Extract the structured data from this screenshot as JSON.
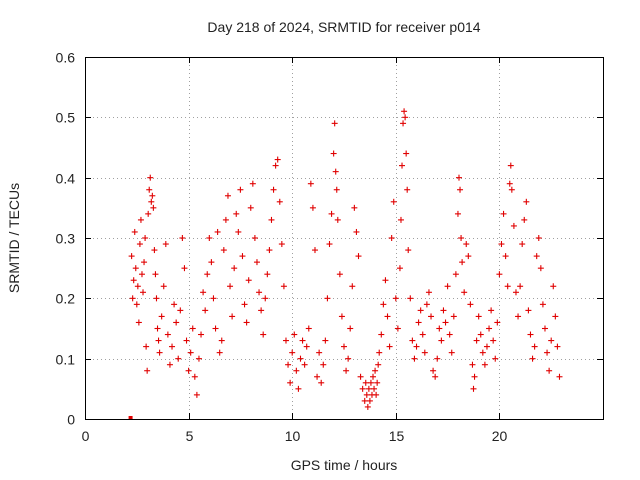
{
  "chart_data": {
    "type": "scatter",
    "title": "Day 218 of 2024, SRMTID for receiver p014",
    "xlabel": "GPS time / hours",
    "ylabel": "SRMTID / TECUs",
    "xlim": [
      0,
      25
    ],
    "ylim": [
      0,
      0.6
    ],
    "x_ticks": [
      0,
      5,
      10,
      15,
      20
    ],
    "x_tick_labels": [
      "0",
      "5",
      "10",
      "15",
      "20"
    ],
    "y_ticks": [
      0,
      0.1,
      0.2,
      0.3,
      0.4,
      0.5,
      0.6
    ],
    "y_tick_labels": [
      "0",
      "0.1",
      "0.2",
      "0.3",
      "0.4",
      "0.5",
      "0.6"
    ],
    "grid": true,
    "marker": "plus",
    "color": "#e00000",
    "outlier_marker": {
      "x": 2.2,
      "y": 0.0,
      "marker": "square"
    },
    "series": [
      {
        "name": "SRMTID",
        "points": [
          [
            2.25,
            0.27
          ],
          [
            2.3,
            0.2
          ],
          [
            2.35,
            0.23
          ],
          [
            2.4,
            0.31
          ],
          [
            2.45,
            0.25
          ],
          [
            2.5,
            0.19
          ],
          [
            2.55,
            0.22
          ],
          [
            2.6,
            0.16
          ],
          [
            2.65,
            0.29
          ],
          [
            2.7,
            0.33
          ],
          [
            2.75,
            0.24
          ],
          [
            2.8,
            0.21
          ],
          [
            2.85,
            0.26
          ],
          [
            2.9,
            0.3
          ],
          [
            2.95,
            0.12
          ],
          [
            3.0,
            0.08
          ],
          [
            3.05,
            0.34
          ],
          [
            3.1,
            0.38
          ],
          [
            3.15,
            0.4
          ],
          [
            3.2,
            0.36
          ],
          [
            3.25,
            0.37
          ],
          [
            3.3,
            0.35
          ],
          [
            3.35,
            0.28
          ],
          [
            3.4,
            0.24
          ],
          [
            3.45,
            0.2
          ],
          [
            3.5,
            0.15
          ],
          [
            3.55,
            0.13
          ],
          [
            3.6,
            0.11
          ],
          [
            3.7,
            0.17
          ],
          [
            3.8,
            0.22
          ],
          [
            3.9,
            0.29
          ],
          [
            4.0,
            0.14
          ],
          [
            4.1,
            0.09
          ],
          [
            4.2,
            0.12
          ],
          [
            4.3,
            0.19
          ],
          [
            4.4,
            0.16
          ],
          [
            4.5,
            0.1
          ],
          [
            4.6,
            0.18
          ],
          [
            4.7,
            0.3
          ],
          [
            4.8,
            0.25
          ],
          [
            4.9,
            0.13
          ],
          [
            5.0,
            0.08
          ],
          [
            5.1,
            0.11
          ],
          [
            5.2,
            0.15
          ],
          [
            5.3,
            0.07
          ],
          [
            5.4,
            0.04
          ],
          [
            5.5,
            0.1
          ],
          [
            5.6,
            0.14
          ],
          [
            5.7,
            0.21
          ],
          [
            5.8,
            0.18
          ],
          [
            5.9,
            0.24
          ],
          [
            6.0,
            0.3
          ],
          [
            6.1,
            0.26
          ],
          [
            6.2,
            0.2
          ],
          [
            6.3,
            0.15
          ],
          [
            6.4,
            0.31
          ],
          [
            6.5,
            0.11
          ],
          [
            6.6,
            0.13
          ],
          [
            6.7,
            0.28
          ],
          [
            6.8,
            0.33
          ],
          [
            6.9,
            0.37
          ],
          [
            7.0,
            0.22
          ],
          [
            7.1,
            0.17
          ],
          [
            7.2,
            0.25
          ],
          [
            7.3,
            0.34
          ],
          [
            7.4,
            0.31
          ],
          [
            7.5,
            0.38
          ],
          [
            7.6,
            0.27
          ],
          [
            7.7,
            0.19
          ],
          [
            7.8,
            0.16
          ],
          [
            7.9,
            0.23
          ],
          [
            8.0,
            0.35
          ],
          [
            8.1,
            0.39
          ],
          [
            8.2,
            0.3
          ],
          [
            8.3,
            0.26
          ],
          [
            8.4,
            0.21
          ],
          [
            8.5,
            0.18
          ],
          [
            8.6,
            0.14
          ],
          [
            8.7,
            0.2
          ],
          [
            8.8,
            0.24
          ],
          [
            8.9,
            0.28
          ],
          [
            9.0,
            0.33
          ],
          [
            9.1,
            0.38
          ],
          [
            9.2,
            0.42
          ],
          [
            9.3,
            0.43
          ],
          [
            9.4,
            0.36
          ],
          [
            9.5,
            0.29
          ],
          [
            9.6,
            0.22
          ],
          [
            9.7,
            0.13
          ],
          [
            9.8,
            0.09
          ],
          [
            9.9,
            0.06
          ],
          [
            10.0,
            0.11
          ],
          [
            10.1,
            0.14
          ],
          [
            10.2,
            0.08
          ],
          [
            10.3,
            0.05
          ],
          [
            10.4,
            0.1
          ],
          [
            10.5,
            0.13
          ],
          [
            10.6,
            0.09
          ],
          [
            10.7,
            0.12
          ],
          [
            10.8,
            0.15
          ],
          [
            10.9,
            0.39
          ],
          [
            11.0,
            0.35
          ],
          [
            11.1,
            0.28
          ],
          [
            11.2,
            0.07
          ],
          [
            11.3,
            0.11
          ],
          [
            11.4,
            0.06
          ],
          [
            11.5,
            0.09
          ],
          [
            11.6,
            0.13
          ],
          [
            11.7,
            0.2
          ],
          [
            11.8,
            0.29
          ],
          [
            11.9,
            0.34
          ],
          [
            12.0,
            0.44
          ],
          [
            12.05,
            0.49
          ],
          [
            12.1,
            0.41
          ],
          [
            12.15,
            0.38
          ],
          [
            12.2,
            0.33
          ],
          [
            12.3,
            0.24
          ],
          [
            12.4,
            0.17
          ],
          [
            12.5,
            0.12
          ],
          [
            12.6,
            0.08
          ],
          [
            12.7,
            0.1
          ],
          [
            12.8,
            0.15
          ],
          [
            12.9,
            0.22
          ],
          [
            13.0,
            0.35
          ],
          [
            13.1,
            0.31
          ],
          [
            13.2,
            0.27
          ],
          [
            13.3,
            0.07
          ],
          [
            13.4,
            0.05
          ],
          [
            13.5,
            0.03
          ],
          [
            13.55,
            0.06
          ],
          [
            13.6,
            0.04
          ],
          [
            13.65,
            0.02
          ],
          [
            13.7,
            0.05
          ],
          [
            13.75,
            0.03
          ],
          [
            13.8,
            0.06
          ],
          [
            13.85,
            0.04
          ],
          [
            13.9,
            0.07
          ],
          [
            13.95,
            0.05
          ],
          [
            14.0,
            0.08
          ],
          [
            14.05,
            0.04
          ],
          [
            14.1,
            0.06
          ],
          [
            14.15,
            0.09
          ],
          [
            14.2,
            0.11
          ],
          [
            14.3,
            0.14
          ],
          [
            14.4,
            0.19
          ],
          [
            14.5,
            0.23
          ],
          [
            14.6,
            0.17
          ],
          [
            14.7,
            0.12
          ],
          [
            14.8,
            0.3
          ],
          [
            14.9,
            0.36
          ],
          [
            15.0,
            0.2
          ],
          [
            15.1,
            0.15
          ],
          [
            15.2,
            0.25
          ],
          [
            15.25,
            0.33
          ],
          [
            15.3,
            0.42
          ],
          [
            15.35,
            0.49
          ],
          [
            15.4,
            0.51
          ],
          [
            15.45,
            0.5
          ],
          [
            15.5,
            0.44
          ],
          [
            15.55,
            0.38
          ],
          [
            15.6,
            0.28
          ],
          [
            15.7,
            0.2
          ],
          [
            15.8,
            0.13
          ],
          [
            15.9,
            0.1
          ],
          [
            16.0,
            0.12
          ],
          [
            16.1,
            0.16
          ],
          [
            16.2,
            0.18
          ],
          [
            16.3,
            0.14
          ],
          [
            16.4,
            0.11
          ],
          [
            16.5,
            0.19
          ],
          [
            16.6,
            0.21
          ],
          [
            16.7,
            0.17
          ],
          [
            16.8,
            0.08
          ],
          [
            16.9,
            0.07
          ],
          [
            17.0,
            0.1
          ],
          [
            17.1,
            0.15
          ],
          [
            17.2,
            0.13
          ],
          [
            17.3,
            0.18
          ],
          [
            17.4,
            0.16
          ],
          [
            17.5,
            0.22
          ],
          [
            17.6,
            0.14
          ],
          [
            17.7,
            0.11
          ],
          [
            17.8,
            0.17
          ],
          [
            17.9,
            0.24
          ],
          [
            18.0,
            0.34
          ],
          [
            18.05,
            0.4
          ],
          [
            18.1,
            0.38
          ],
          [
            18.15,
            0.3
          ],
          [
            18.2,
            0.26
          ],
          [
            18.3,
            0.21
          ],
          [
            18.4,
            0.29
          ],
          [
            18.5,
            0.27
          ],
          [
            18.6,
            0.19
          ],
          [
            18.7,
            0.09
          ],
          [
            18.75,
            0.05
          ],
          [
            18.8,
            0.07
          ],
          [
            18.9,
            0.13
          ],
          [
            19.0,
            0.17
          ],
          [
            19.1,
            0.14
          ],
          [
            19.2,
            0.11
          ],
          [
            19.3,
            0.09
          ],
          [
            19.4,
            0.12
          ],
          [
            19.5,
            0.15
          ],
          [
            19.6,
            0.18
          ],
          [
            19.7,
            0.13
          ],
          [
            19.8,
            0.1
          ],
          [
            19.9,
            0.16
          ],
          [
            20.0,
            0.24
          ],
          [
            20.1,
            0.29
          ],
          [
            20.2,
            0.34
          ],
          [
            20.3,
            0.27
          ],
          [
            20.4,
            0.22
          ],
          [
            20.5,
            0.39
          ],
          [
            20.55,
            0.42
          ],
          [
            20.6,
            0.38
          ],
          [
            20.7,
            0.32
          ],
          [
            20.8,
            0.21
          ],
          [
            20.9,
            0.17
          ],
          [
            21.0,
            0.22
          ],
          [
            21.1,
            0.29
          ],
          [
            21.2,
            0.33
          ],
          [
            21.3,
            0.36
          ],
          [
            21.4,
            0.18
          ],
          [
            21.5,
            0.14
          ],
          [
            21.6,
            0.1
          ],
          [
            21.7,
            0.12
          ],
          [
            21.8,
            0.27
          ],
          [
            21.9,
            0.3
          ],
          [
            22.0,
            0.25
          ],
          [
            22.1,
            0.19
          ],
          [
            22.2,
            0.15
          ],
          [
            22.3,
            0.11
          ],
          [
            22.4,
            0.08
          ],
          [
            22.5,
            0.13
          ],
          [
            22.6,
            0.22
          ],
          [
            22.7,
            0.17
          ],
          [
            22.8,
            0.12
          ],
          [
            22.9,
            0.07
          ]
        ]
      }
    ]
  }
}
